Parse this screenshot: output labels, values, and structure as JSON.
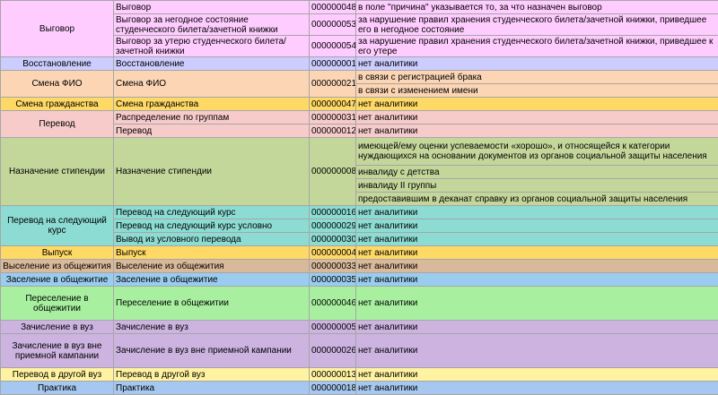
{
  "colors": {
    "pink": "#ffccff",
    "lavender": "#ccccff",
    "peach": "#fcd5b4",
    "gold": "#ffd966",
    "rose": "#f8cbcb",
    "sage": "#c4d79b",
    "teal": "#8cdcd3",
    "tan": "#d9b99b",
    "sky": "#99ccee",
    "lime": "#a8f0a0",
    "violet": "#ccb3e0",
    "yellow": "#fff2a0",
    "blue": "#a6c8f0"
  },
  "groups": [
    {
      "category": "Выговор",
      "color": "pink",
      "rows": [
        {
          "type": "Выговор",
          "code": "000000048",
          "analytics": [
            "в поле \"причина\" указывается то, за что назначен выговор"
          ]
        },
        {
          "type": "Выговор за негодное состояние студенческого билета/зачетной книжки",
          "code": "000000053",
          "analytics": [
            "за нарушение правил хранения студенческого билета/зачетной книжки, приведшее его в негодное состояние"
          ]
        },
        {
          "type": "Выговор за утерю студенческого билета/зачетной книжки",
          "code": "000000054",
          "analytics": [
            "за нарушение правил хранения студенческого билета/зачетной книжки, приведшее к его утере"
          ]
        }
      ]
    },
    {
      "category": "Восстановление",
      "color": "lavender",
      "rows": [
        {
          "type": "Восстановление",
          "code": "000000001",
          "analytics": [
            "нет аналитики"
          ]
        }
      ]
    },
    {
      "category": "Смена ФИО",
      "color": "peach",
      "rows": [
        {
          "type": "Смена ФИО",
          "code": "000000021",
          "analytics": [
            "в связи с регистрацией брака",
            "в связи с изменением имени"
          ]
        }
      ]
    },
    {
      "category": "Смена гражданства",
      "color": "gold",
      "rows": [
        {
          "type": "Смена гражданства",
          "code": "000000047",
          "analytics": [
            "нет аналитики"
          ]
        }
      ]
    },
    {
      "category": "Перевод",
      "color": "rose",
      "rows": [
        {
          "type": "Распределение по группам",
          "code": "000000031",
          "analytics": [
            "нет аналитики"
          ]
        },
        {
          "type": "Перевод",
          "code": "000000012",
          "analytics": [
            "нет аналитики"
          ]
        }
      ]
    },
    {
      "category": "Назначение стипендии",
      "color": "sage",
      "rows": [
        {
          "type": "Назначение стипендии",
          "code": "000000008",
          "analytics": [
            "имеющей/ему оценки успеваемости «хорошо», и относящейся к категории нуждающихся на основании документов из органов социальной защиты населения",
            "инвалиду с детства",
            "инвалиду II группы",
            "предоставившим в деканат справку из органов социальной защиты населения"
          ]
        }
      ]
    },
    {
      "category": "Перевод на следующий курс",
      "color": "teal",
      "rows": [
        {
          "type": "Перевод на следующий курс",
          "code": "000000016",
          "analytics": [
            "нет аналитики"
          ]
        },
        {
          "type": "Перевод на следующий курс условно",
          "code": "000000029",
          "analytics": [
            "нет аналитики"
          ]
        },
        {
          "type": "Вывод из условного перевода",
          "code": "000000030",
          "analytics": [
            "нет аналитики"
          ]
        }
      ]
    },
    {
      "category": "Выпуск",
      "color": "gold",
      "rows": [
        {
          "type": "Выпуск",
          "code": "000000004",
          "analytics": [
            "нет аналитики"
          ]
        }
      ]
    },
    {
      "category": "Выселение из общежития",
      "color": "tan",
      "rows": [
        {
          "type": "Выселение из общежития",
          "code": "000000033",
          "analytics": [
            "нет аналитики"
          ]
        }
      ]
    },
    {
      "category": "Заселение в общежитие",
      "color": "sky",
      "rows": [
        {
          "type": "Заселение в общежитие",
          "code": "000000035",
          "analytics": [
            "нет аналитики"
          ]
        }
      ]
    },
    {
      "category": "Переселение в общежитии",
      "color": "lime",
      "rows": [
        {
          "type": "Переселение в общежитии",
          "code": "000000046",
          "analytics": [
            "нет аналитики"
          ]
        }
      ]
    },
    {
      "category": "Зачисление в вуз",
      "color": "violet",
      "rows": [
        {
          "type": "Зачисление в вуз",
          "code": "000000005",
          "analytics": [
            "нет аналитики"
          ]
        }
      ]
    },
    {
      "category": "Зачисление в вуз вне приемной кампании",
      "color": "violet",
      "rows": [
        {
          "type": "Зачисление в вуз вне приемной кампании",
          "code": "000000026",
          "analytics": [
            "нет аналитики"
          ]
        }
      ]
    },
    {
      "category": "Перевод в другой вуз",
      "color": "yellow",
      "rows": [
        {
          "type": "Перевод в другой вуз",
          "code": "000000013",
          "analytics": [
            "нет аналитики"
          ]
        }
      ]
    },
    {
      "category": "Практика",
      "color": "blue",
      "rows": [
        {
          "type": "Практика",
          "code": "000000018",
          "analytics": [
            "нет аналитики"
          ]
        }
      ]
    }
  ]
}
